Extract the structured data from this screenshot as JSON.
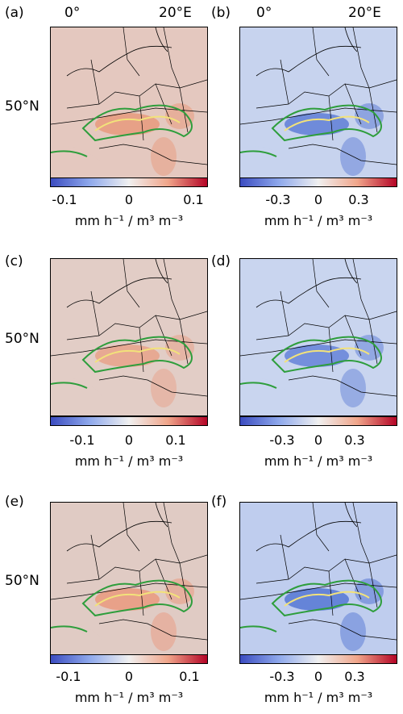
{
  "lon_labels": [
    "0°",
    "20°E"
  ],
  "lat_label": "50°N",
  "unit_label": "mm h⁻¹ / m³ m⁻³",
  "colors": {
    "land": "#d9d9d9",
    "contour_green": "#2e9e3c",
    "contour_yellow": "#f2e27a",
    "cmap_low": "#3b4cc0",
    "cmap_mid": "#f0f0f0",
    "cmap_high": "#b40426"
  },
  "panels": [
    {
      "letter": "(a)",
      "tint": "#e4c8bf",
      "hot": "#e89a7d",
      "cbar": [
        "-0.1",
        "0",
        "0.1"
      ]
    },
    {
      "letter": "(b)",
      "tint": "#c7d3ee",
      "hot": "#5f7ed6",
      "cbar": [
        "-0.3",
        "0",
        "0.3"
      ]
    },
    {
      "letter": "(c)",
      "tint": "#e2cdc6",
      "hot": "#e8a28a",
      "cbar": [
        "-0.1",
        "0",
        "0.1"
      ]
    },
    {
      "letter": "(d)",
      "tint": "#c9d5ef",
      "hot": "#6583d8",
      "cbar": [
        "-0.3",
        "0",
        "0.3"
      ]
    },
    {
      "letter": "(e)",
      "tint": "#e0cbc4",
      "hot": "#e99a7f",
      "cbar": [
        "-0.1",
        "0",
        "0.1"
      ]
    },
    {
      "letter": "(f)",
      "tint": "#bfcdee",
      "hot": "#5577d4",
      "cbar": [
        "-0.3",
        "0",
        "0.3"
      ]
    }
  ]
}
